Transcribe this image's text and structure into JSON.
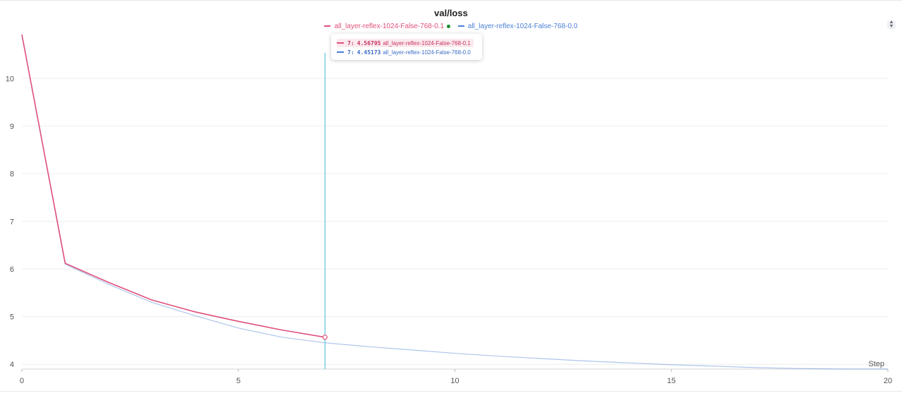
{
  "chart_data": {
    "type": "line",
    "title": "val/loss",
    "xlabel": "Step",
    "ylabel": "",
    "xlim": [
      0,
      20
    ],
    "ylim": [
      3.9,
      10.95
    ],
    "x_ticks": [
      "0",
      "5",
      "10",
      "15",
      "20"
    ],
    "y_ticks": [
      "4",
      "5",
      "6",
      "7",
      "8",
      "9",
      "10"
    ],
    "grid": true,
    "legend_position": "top-center",
    "series": [
      {
        "name": "all_layer-reflex-1024-False-768-0.1",
        "color": "#e0507a",
        "x": [
          0,
          1,
          2,
          3,
          4,
          5,
          6,
          7
        ],
        "y": [
          10.92,
          6.12,
          5.72,
          5.35,
          5.1,
          4.9,
          4.72,
          4.56795
        ]
      },
      {
        "name": "all_layer-reflex-1024-False-768-0.0",
        "color": "#4a7fd6",
        "x": [
          0,
          1,
          2,
          3,
          4,
          5,
          6,
          7,
          8,
          9,
          10,
          11,
          12,
          13,
          14,
          15,
          16,
          17,
          18,
          19,
          20
        ],
        "y": [
          10.92,
          6.1,
          5.68,
          5.3,
          5.02,
          4.76,
          4.57,
          4.45173,
          4.37,
          4.3,
          4.23,
          4.17,
          4.12,
          4.07,
          4.03,
          3.99,
          3.96,
          3.93,
          3.91,
          3.9,
          3.9
        ]
      }
    ],
    "hover": {
      "step": "7",
      "rows": [
        {
          "step": "7:",
          "value": "4.56795",
          "name": "all_layer-reflex-1024-False-768-0.1",
          "color": "#e0507a",
          "highlighted": true
        },
        {
          "step": "7:",
          "value": "4.45173",
          "name": "all_layer-reflex-1024-False-768-0.0",
          "color": "#4a7fd6",
          "highlighted": false
        }
      ]
    }
  },
  "cursor_color": "#39b6d8",
  "legend": [
    {
      "label": "all_layer-reflex-1024-False-768-0.1",
      "color": "#e0507a"
    },
    {
      "label": "all_layer-reflex-1024-False-768-0.0",
      "color": "#4a7fd6"
    }
  ],
  "sort_icon": "sort-updown-icon"
}
